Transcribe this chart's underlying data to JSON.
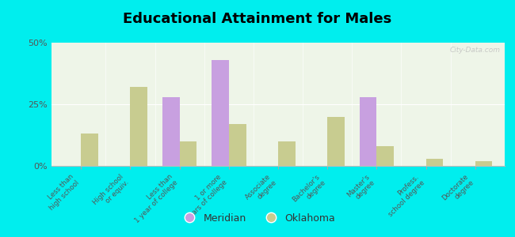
{
  "title": "Educational Attainment for Males",
  "categories": [
    "Less than\nhigh school",
    "High school\nor equiv.",
    "Less than\n1 year of college",
    "1 or more\nyears of college",
    "Associate\ndegree",
    "Bachelor's\ndegree",
    "Master's\ndegree",
    "Profess.\nschool degree",
    "Doctorate\ndegree"
  ],
  "meridian": [
    0,
    0,
    28,
    43,
    0,
    0,
    28,
    0,
    0
  ],
  "oklahoma": [
    13,
    32,
    10,
    17,
    10,
    20,
    8,
    3,
    2
  ],
  "meridian_color": "#c8a0e0",
  "oklahoma_color": "#c8cc90",
  "background_color": "#00eeee",
  "plot_bg": "#eef5e8",
  "ylim": [
    0,
    50
  ],
  "yticks": [
    0,
    25,
    50
  ],
  "ytick_labels": [
    "0%",
    "25%",
    "50%"
  ],
  "bar_width": 0.35,
  "legend_meridian": "Meridian",
  "legend_oklahoma": "Oklahoma",
  "watermark": "City-Data.com"
}
